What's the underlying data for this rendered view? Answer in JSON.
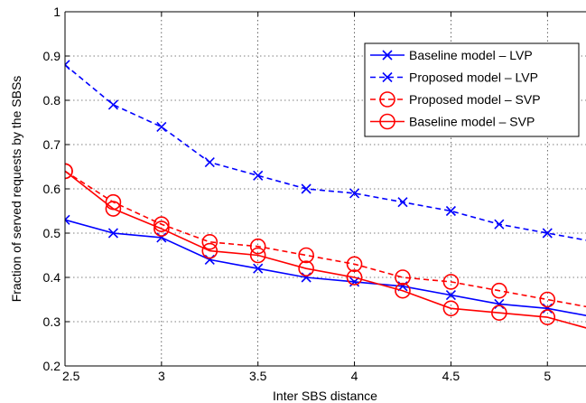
{
  "chart_data": {
    "type": "line",
    "title": "",
    "xlabel": "Inter SBS distance",
    "ylabel": "Fraction of served requests by the SBSs",
    "xlim": [
      2.5,
      5.2
    ],
    "ylim": [
      0.2,
      1.0
    ],
    "xticks": [
      "2.5",
      "3",
      "3.5",
      "4",
      "4.5",
      "5"
    ],
    "yticks": [
      "0.2",
      "0.3",
      "0.4",
      "0.5",
      "0.6",
      "0.7",
      "0.8",
      "0.9",
      "1"
    ],
    "grid": true,
    "legend_position": "top-right",
    "x": [
      2.5,
      2.75,
      3.0,
      3.25,
      3.5,
      3.75,
      4.0,
      4.25,
      4.5,
      4.75,
      5.0,
      5.25
    ],
    "series": [
      {
        "name": "Baseline model – LVP",
        "color": "#0000ff",
        "line": "solid",
        "marker": "x",
        "values": [
          0.53,
          0.5,
          0.49,
          0.44,
          0.42,
          0.4,
          0.39,
          0.38,
          0.36,
          0.34,
          0.33,
          0.31
        ]
      },
      {
        "name": "Proposed model – LVP",
        "color": "#0000ff",
        "line": "dashed",
        "marker": "x",
        "values": [
          0.88,
          0.79,
          0.74,
          0.66,
          0.63,
          0.6,
          0.59,
          0.57,
          0.55,
          0.52,
          0.5,
          0.48
        ]
      },
      {
        "name": "Proposed model – SVP",
        "color": "#ff0000",
        "line": "dashed",
        "marker": "circle",
        "values": [
          0.64,
          0.57,
          0.52,
          0.48,
          0.47,
          0.45,
          0.43,
          0.4,
          0.39,
          0.37,
          0.35,
          0.33
        ]
      },
      {
        "name": "Baseline model – SVP",
        "color": "#ff0000",
        "line": "solid",
        "marker": "circle",
        "values": [
          0.64,
          0.555,
          0.51,
          0.46,
          0.45,
          0.42,
          0.4,
          0.37,
          0.33,
          0.32,
          0.31,
          0.28
        ]
      }
    ]
  }
}
